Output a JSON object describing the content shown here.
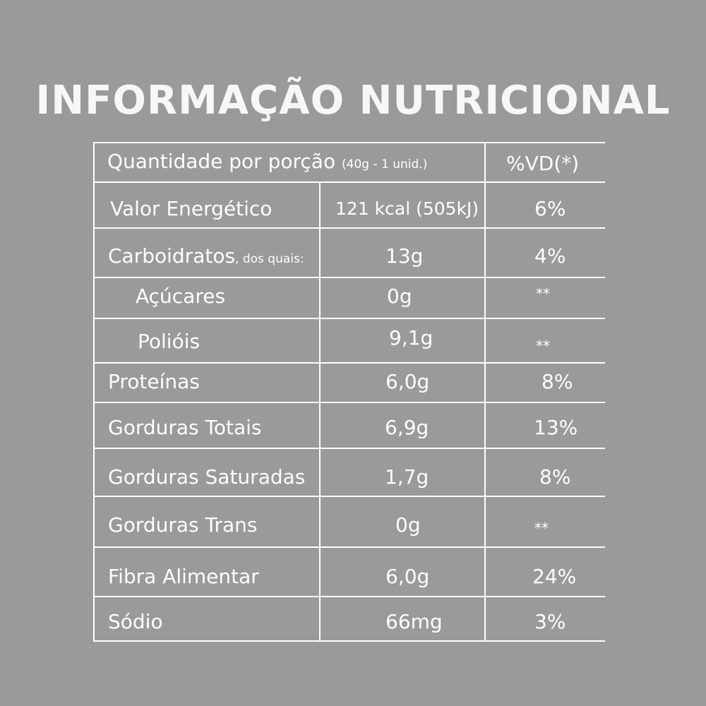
{
  "title": "INFORMAÇÃO NUTRICIONAL",
  "header": {
    "serving_label": "Quantidade por porção",
    "serving_detail": "(40g - 1 unid.)",
    "dv_label": "%VD(*)"
  },
  "rows": [
    {
      "name": "Valor Energético",
      "suffix": "",
      "amount": "121 kcal (505kJ)",
      "dv": "6%"
    },
    {
      "name": "Carboidratos",
      "suffix": ", dos quais:",
      "amount": "13g",
      "dv": "4%"
    },
    {
      "name": "Açúcares",
      "suffix": "",
      "amount": "0g",
      "dv": "**"
    },
    {
      "name": "Polióis",
      "suffix": "",
      "amount": "9,1g",
      "dv": "**"
    },
    {
      "name": "Proteínas",
      "suffix": "",
      "amount": "6,0g",
      "dv": "8%"
    },
    {
      "name": "Gorduras Totais",
      "suffix": "",
      "amount": "6,9g",
      "dv": "13%"
    },
    {
      "name": "Gorduras Saturadas",
      "suffix": "",
      "amount": "1,7g",
      "dv": "8%"
    },
    {
      "name": "Gorduras Trans",
      "suffix": "",
      "amount": "0g",
      "dv": "**"
    },
    {
      "name": "Fibra Alimentar",
      "suffix": "",
      "amount": "6,0g",
      "dv": "24%"
    },
    {
      "name": "Sódio",
      "suffix": "",
      "amount": "66mg",
      "dv": "3%"
    }
  ]
}
